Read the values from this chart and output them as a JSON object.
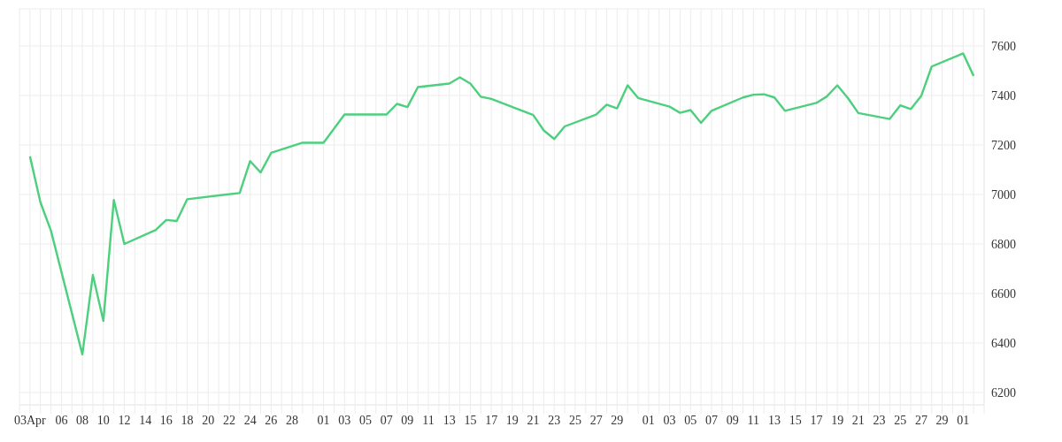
{
  "chart_data": {
    "type": "line",
    "x": [
      "--04-03",
      "--04-04",
      "--04-05",
      "--04-08",
      "--04-09",
      "--04-10",
      "--04-11",
      "--04-12",
      "--04-15",
      "--04-16",
      "--04-17",
      "--04-18",
      "--04-23",
      "--04-24",
      "--04-25",
      "--04-26",
      "--04-29",
      "--04-30",
      "--05-01",
      "--05-03",
      "--05-07",
      "--05-08",
      "--05-09",
      "--05-10",
      "--05-13",
      "--05-14",
      "--05-15",
      "--05-16",
      "--05-17",
      "--05-21",
      "--05-22",
      "--05-23",
      "--05-24",
      "--05-27",
      "--05-28",
      "--05-29",
      "--05-30",
      "--05-31",
      "--06-03",
      "--06-04",
      "--06-05",
      "--06-06",
      "--06-07",
      "--06-10",
      "--06-11",
      "--06-12",
      "--06-13",
      "--06-14",
      "--06-17",
      "--06-18",
      "--06-19",
      "--06-20",
      "--06-21",
      "--06-24",
      "--06-25",
      "--06-26",
      "--06-27",
      "--06-28",
      "--07-01",
      "--07-02"
    ],
    "series": [
      {
        "color": "#4cd07d",
        "values": [
          7154,
          6968,
          6854,
          6354,
          6675,
          6489,
          6978,
          6800,
          6857,
          6897,
          6893,
          6981,
          7006,
          7135,
          7089,
          7168,
          7209,
          7209,
          7209,
          7323,
          7323,
          7366,
          7353,
          7434,
          7448,
          7473,
          7448,
          7395,
          7386,
          7321,
          7259,
          7224,
          7275,
          7323,
          7363,
          7348,
          7441,
          7390,
          7355,
          7330,
          7341,
          7289,
          7338,
          7392,
          7403,
          7405,
          7392,
          7338,
          7370,
          7396,
          7441,
          7390,
          7329,
          7305,
          7360,
          7345,
          7398,
          7517,
          7570,
          7479
        ]
      }
    ],
    "xlim": [
      "--04-02",
      "--07-03"
    ],
    "xticks": [
      {
        "value": "--04-02",
        "label": null
      },
      {
        "value": "--04-03",
        "label": "03Apr"
      },
      {
        "value": "--04-04",
        "label": null
      },
      {
        "value": "--04-05",
        "label": null
      },
      {
        "value": "--04-06",
        "label": "06"
      },
      {
        "value": "--04-07",
        "label": null
      },
      {
        "value": "--04-08",
        "label": "08"
      },
      {
        "value": "--04-09",
        "label": null
      },
      {
        "value": "--04-10",
        "label": "10"
      },
      {
        "value": "--04-11",
        "label": null
      },
      {
        "value": "--04-12",
        "label": "12"
      },
      {
        "value": "--04-13",
        "label": null
      },
      {
        "value": "--04-14",
        "label": "14"
      },
      {
        "value": "--04-15",
        "label": null
      },
      {
        "value": "--04-16",
        "label": "16"
      },
      {
        "value": "--04-17",
        "label": null
      },
      {
        "value": "--04-18",
        "label": "18"
      },
      {
        "value": "--04-19",
        "label": null
      },
      {
        "value": "--04-20",
        "label": "20"
      },
      {
        "value": "--04-21",
        "label": null
      },
      {
        "value": "--04-22",
        "label": "22"
      },
      {
        "value": "--04-23",
        "label": null
      },
      {
        "value": "--04-24",
        "label": "24"
      },
      {
        "value": "--04-25",
        "label": null
      },
      {
        "value": "--04-26",
        "label": "26"
      },
      {
        "value": "--04-27",
        "label": null
      },
      {
        "value": "--04-28",
        "label": "28"
      },
      {
        "value": "--04-29",
        "label": null
      },
      {
        "value": "--04-30",
        "label": null
      },
      {
        "value": "--05-01",
        "label": "01"
      },
      {
        "value": "--05-02",
        "label": null
      },
      {
        "value": "--05-03",
        "label": "03"
      },
      {
        "value": "--05-04",
        "label": null
      },
      {
        "value": "--05-05",
        "label": "05"
      },
      {
        "value": "--05-06",
        "label": null
      },
      {
        "value": "--05-07",
        "label": "07"
      },
      {
        "value": "--05-08",
        "label": null
      },
      {
        "value": "--05-09",
        "label": "09"
      },
      {
        "value": "--05-10",
        "label": null
      },
      {
        "value": "--05-11",
        "label": "11"
      },
      {
        "value": "--05-12",
        "label": null
      },
      {
        "value": "--05-13",
        "label": "13"
      },
      {
        "value": "--05-14",
        "label": null
      },
      {
        "value": "--05-15",
        "label": "15"
      },
      {
        "value": "--05-16",
        "label": null
      },
      {
        "value": "--05-17",
        "label": "17"
      },
      {
        "value": "--05-18",
        "label": null
      },
      {
        "value": "--05-19",
        "label": "19"
      },
      {
        "value": "--05-20",
        "label": null
      },
      {
        "value": "--05-21",
        "label": "21"
      },
      {
        "value": "--05-22",
        "label": null
      },
      {
        "value": "--05-23",
        "label": "23"
      },
      {
        "value": "--05-24",
        "label": null
      },
      {
        "value": "--05-25",
        "label": "25"
      },
      {
        "value": "--05-26",
        "label": null
      },
      {
        "value": "--05-27",
        "label": "27"
      },
      {
        "value": "--05-28",
        "label": null
      },
      {
        "value": "--05-29",
        "label": "29"
      },
      {
        "value": "--05-30",
        "label": null
      },
      {
        "value": "--05-31",
        "label": null
      },
      {
        "value": "--06-01",
        "label": "01"
      },
      {
        "value": "--06-02",
        "label": null
      },
      {
        "value": "--06-03",
        "label": "03"
      },
      {
        "value": "--06-04",
        "label": null
      },
      {
        "value": "--06-05",
        "label": "05"
      },
      {
        "value": "--06-06",
        "label": null
      },
      {
        "value": "--06-07",
        "label": "07"
      },
      {
        "value": "--06-08",
        "label": null
      },
      {
        "value": "--06-09",
        "label": "09"
      },
      {
        "value": "--06-10",
        "label": null
      },
      {
        "value": "--06-11",
        "label": "11"
      },
      {
        "value": "--06-12",
        "label": null
      },
      {
        "value": "--06-13",
        "label": "13"
      },
      {
        "value": "--06-14",
        "label": null
      },
      {
        "value": "--06-15",
        "label": "15"
      },
      {
        "value": "--06-16",
        "label": null
      },
      {
        "value": "--06-17",
        "label": "17"
      },
      {
        "value": "--06-18",
        "label": null
      },
      {
        "value": "--06-19",
        "label": "19"
      },
      {
        "value": "--06-20",
        "label": null
      },
      {
        "value": "--06-21",
        "label": "21"
      },
      {
        "value": "--06-22",
        "label": null
      },
      {
        "value": "--06-23",
        "label": "23"
      },
      {
        "value": "--06-24",
        "label": null
      },
      {
        "value": "--06-25",
        "label": "25"
      },
      {
        "value": "--06-26",
        "label": null
      },
      {
        "value": "--06-27",
        "label": "27"
      },
      {
        "value": "--06-28",
        "label": null
      },
      {
        "value": "--06-29",
        "label": "29"
      },
      {
        "value": "--06-30",
        "label": null
      },
      {
        "value": "--07-01",
        "label": "01"
      },
      {
        "value": "--07-02",
        "label": null
      },
      {
        "value": "--07-03",
        "label": null
      }
    ],
    "ylim": [
      6150,
      7750
    ],
    "yticks": [
      6200,
      6400,
      6600,
      6800,
      7000,
      7200,
      7400,
      7600
    ],
    "grid": true,
    "legend": false,
    "marker": "none",
    "line_style": "solid"
  }
}
